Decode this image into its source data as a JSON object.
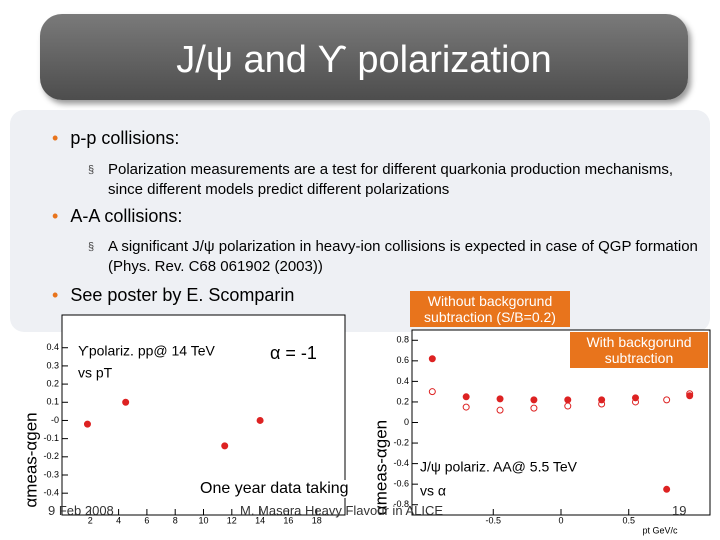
{
  "header": {
    "title": "J/ψ and ϒ polarization"
  },
  "bullets": [
    {
      "text": "p-p collisions:",
      "sub": [
        "Polarization measurements are a test for different quarkonia production mechanisms, since different models predict different polarizations"
      ]
    },
    {
      "text": "A-A collisions:",
      "sub": [
        "A significant J/ψ polarization in heavy-ion collisions is expected in case of QGP formation (Phys. Rev. C68 061902 (2003))"
      ]
    },
    {
      "text": "See poster by E. Scomparin"
    }
  ],
  "chart_data": [
    {
      "type": "scatter",
      "y_label": "αmeas-αgen",
      "annotations": [
        "ϒpolariz. pp@ 14 TeV",
        "vs pT",
        "α = -1"
      ],
      "x": [
        1.8,
        4.5,
        11.5,
        14
      ],
      "series": [
        {
          "color": "#dd2222",
          "values": [
            -0.02,
            0.1,
            -0.14,
            0.0
          ]
        }
      ],
      "xlim": [
        0,
        20
      ],
      "xticks": [
        2,
        4,
        6,
        8,
        10,
        12,
        14,
        16,
        18
      ],
      "ylim": [
        -0.52,
        0.58
      ],
      "yticks": [
        0.4,
        0.3,
        0.2,
        0.1,
        {
          "value": 0,
          "label": "-0"
        },
        -0.1,
        -0.2,
        -0.3,
        -0.4
      ]
    },
    {
      "type": "scatter",
      "y_label": "αmeas-αgen",
      "x_label": "pt GeV/c",
      "annotations": [
        "Without backgorund subtraction (S/B=0.2)",
        "With backgorund subtraction",
        "J/ψ polariz. AA@ 5.5 TeV",
        "vs α"
      ],
      "x": [
        -0.95,
        -0.7,
        -0.45,
        -0.2,
        0.05,
        0.3,
        0.55,
        0.78,
        0.95
      ],
      "series": [
        {
          "color": "#dd2222",
          "values": [
            0.62,
            0.25,
            0.23,
            0.22,
            0.22,
            0.22,
            0.24,
            -0.65,
            0.26
          ]
        },
        {
          "color": "#dd2222",
          "hollow": true,
          "values": [
            0.3,
            0.15,
            0.12,
            0.14,
            0.16,
            0.18,
            0.2,
            0.22,
            0.28
          ]
        }
      ],
      "xlim": [
        -1.1,
        1.1
      ],
      "xticks": [
        -0.5,
        0,
        0.5
      ],
      "ylim": [
        -0.9,
        0.9
      ],
      "yticks": [
        0.8,
        0.6,
        0.4,
        0.2,
        0,
        -0.2,
        -0.4,
        -0.6,
        -0.8
      ]
    }
  ],
  "notes": {
    "data_taking": "One year data taking"
  },
  "footer": {
    "date": "9 Feb 2008",
    "author": "M. Masera  Heavy Flavour in ALICE",
    "page": "19"
  }
}
